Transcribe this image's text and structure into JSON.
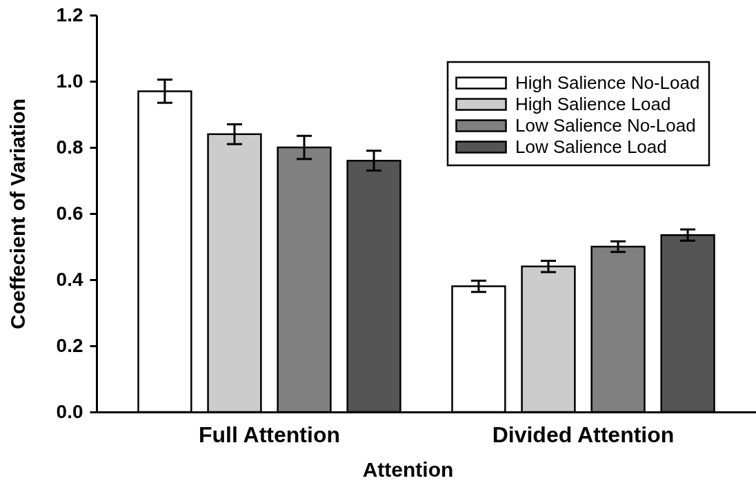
{
  "chart_data": {
    "type": "bar",
    "xlabel": "Attention",
    "ylabel": "Coeffecient of Variation",
    "categories": [
      "Full Attention",
      "Divided Attention"
    ],
    "series": [
      {
        "name": "High Salience No-Load",
        "color": "#ffffff",
        "values": [
          0.97,
          0.38
        ],
        "errors": [
          0.035,
          0.017
        ]
      },
      {
        "name": "High Salience Load",
        "color": "#cccccc",
        "values": [
          0.84,
          0.44
        ],
        "errors": [
          0.03,
          0.017
        ]
      },
      {
        "name": "Low Salience No-Load",
        "color": "#808080",
        "values": [
          0.8,
          0.5
        ],
        "errors": [
          0.035,
          0.016
        ]
      },
      {
        "name": "Low Salience Load",
        "color": "#555555",
        "values": [
          0.76,
          0.535
        ],
        "errors": [
          0.03,
          0.017
        ]
      }
    ],
    "ylim": [
      0,
      1.2
    ],
    "yticks": [
      {
        "value": 0,
        "label": "0.0"
      },
      0.2,
      0.4,
      0.6,
      0.8,
      {
        "value": 1,
        "label": "1.0"
      },
      1.2
    ],
    "legend": "top right"
  }
}
